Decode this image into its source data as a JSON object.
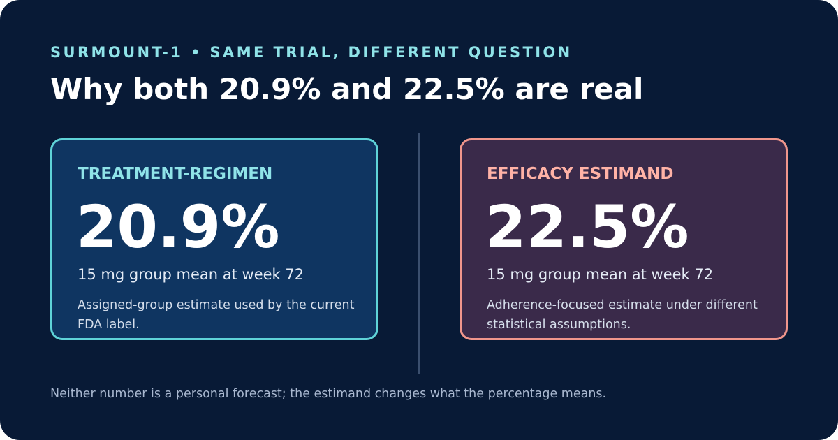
{
  "header": {
    "eyebrow": "SURMOUNT-1 • SAME TRIAL, DIFFERENT QUESTION",
    "title": "Why both 20.9% and 22.5% are real"
  },
  "panels": [
    {
      "label": "TREATMENT-REGIMEN",
      "value": "20.9%",
      "subtitle": "15 mg group mean at week 72",
      "description": "Assigned-group estimate used by the current FDA label.",
      "accent_color": "#5fd3d8"
    },
    {
      "label": "EFFICACY ESTIMAND",
      "value": "22.5%",
      "subtitle": "15 mg group mean at week 72",
      "description": "Adherence-focused estimate under different statistical assumptions.",
      "accent_color": "#f0968c"
    }
  ],
  "footnote": "Neither number is a personal forecast; the estimand changes what the percentage means.",
  "colors": {
    "background": "#081a36",
    "left_panel_fill": "#0f3561",
    "right_panel_fill": "#3a2a4a"
  }
}
